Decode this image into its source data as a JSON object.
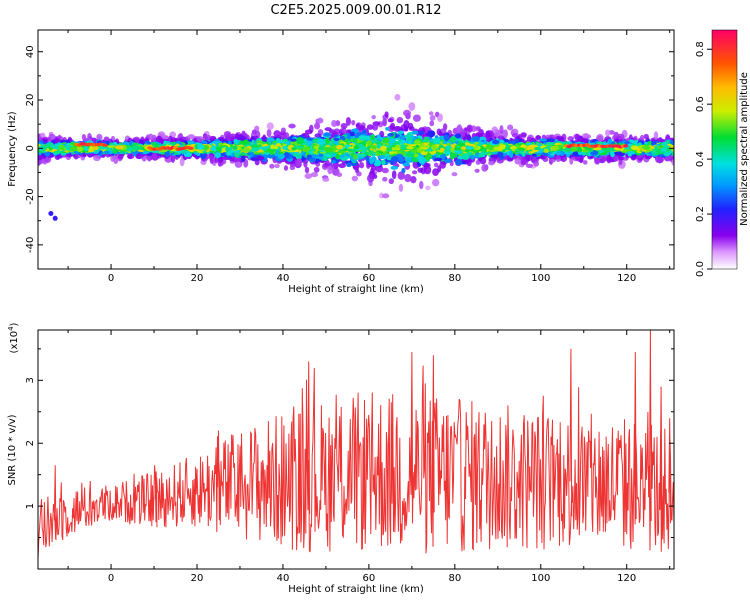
{
  "figure_title": "C2E5.2025.009.00.01.R12",
  "chart_data": [
    {
      "type": "heatmap",
      "xlabel": "Height of straight line (km)",
      "ylabel": "Frequency (Hz)",
      "xlim": [
        -17,
        131
      ],
      "ylim": [
        -50,
        49
      ],
      "x_ticks": [
        0,
        20,
        40,
        60,
        80,
        100,
        120
      ],
      "y_ticks": [
        -40,
        -20,
        0,
        20,
        40
      ],
      "colorbar": {
        "label": "Normalized spectral amplitude",
        "range": [
          0.0,
          0.87
        ],
        "ticks": [
          0.0,
          0.2,
          0.4,
          0.6,
          0.8
        ]
      },
      "ridge": {
        "center_frequency_hz": 0,
        "band_halfwidth_profile": [
          {
            "x": -17,
            "hz": 4
          },
          {
            "x": 0,
            "hz": 3
          },
          {
            "x": 20,
            "hz": 4
          },
          {
            "x": 40,
            "hz": 6
          },
          {
            "x": 55,
            "hz": 9
          },
          {
            "x": 65,
            "hz": 12
          },
          {
            "x": 75,
            "hz": 9
          },
          {
            "x": 90,
            "hz": 5
          },
          {
            "x": 110,
            "hz": 4
          },
          {
            "x": 131,
            "hz": 4
          }
        ],
        "peak_segments": [
          {
            "x0": -8,
            "x1": -1,
            "hz": 1.5,
            "amp": 0.85
          },
          {
            "x0": 9,
            "x1": 19,
            "hz": 0,
            "amp": 0.85
          },
          {
            "x0": 106,
            "x1": 120,
            "hz": 1,
            "amp": 0.85
          }
        ]
      },
      "isolated_features": [
        {
          "x": -14,
          "hz": -27,
          "amp": 0.2
        },
        {
          "x": -13,
          "hz": -29,
          "amp": 0.2
        }
      ]
    },
    {
      "type": "line",
      "xlabel": "Height of straight line (km)",
      "ylabel": "SNR (10 * v/v)",
      "y_multiplier": "(x10",
      "y_multiplier_exp": "4",
      "y_multiplier_close": ")",
      "xlim": [
        -17,
        131
      ],
      "ylim": [
        0,
        3.8
      ],
      "x_ticks": [
        0,
        20,
        40,
        60,
        80,
        100,
        120
      ],
      "y_ticks": [
        1,
        2,
        3
      ],
      "color": "#ee3333",
      "envelope": [
        {
          "x": -17,
          "mean": 0.6,
          "amp": 0.5
        },
        {
          "x": -10,
          "mean": 0.9,
          "amp": 0.4
        },
        {
          "x": 0,
          "mean": 1.05,
          "amp": 0.3
        },
        {
          "x": 10,
          "mean": 1.1,
          "amp": 0.45
        },
        {
          "x": 20,
          "mean": 1.25,
          "amp": 0.6
        },
        {
          "x": 30,
          "mean": 1.35,
          "amp": 0.9
        },
        {
          "x": 45,
          "mean": 1.45,
          "amp": 1.2
        },
        {
          "x": 60,
          "mean": 1.55,
          "amp": 1.3
        },
        {
          "x": 75,
          "mean": 1.5,
          "amp": 1.3
        },
        {
          "x": 90,
          "mean": 1.45,
          "amp": 1.2
        },
        {
          "x": 105,
          "mean": 1.4,
          "amp": 1.1
        },
        {
          "x": 120,
          "mean": 1.35,
          "amp": 1.1
        },
        {
          "x": 131,
          "mean": 1.2,
          "amp": 1.0
        }
      ],
      "spikes": [
        {
          "x": -13,
          "y": 1.65
        },
        {
          "x": 10.5,
          "y": 1.55
        },
        {
          "x": 25,
          "y": 2.2
        },
        {
          "x": 46,
          "y": 3.3
        },
        {
          "x": 70,
          "y": 3.45
        },
        {
          "x": 75,
          "y": 3.4
        },
        {
          "x": 107,
          "y": 3.5
        },
        {
          "x": 122,
          "y": 3.45
        },
        {
          "x": 125.5,
          "y": 3.8
        },
        {
          "x": 128,
          "y": 2.9
        },
        {
          "x": 130,
          "y": 2.4
        }
      ]
    }
  ]
}
